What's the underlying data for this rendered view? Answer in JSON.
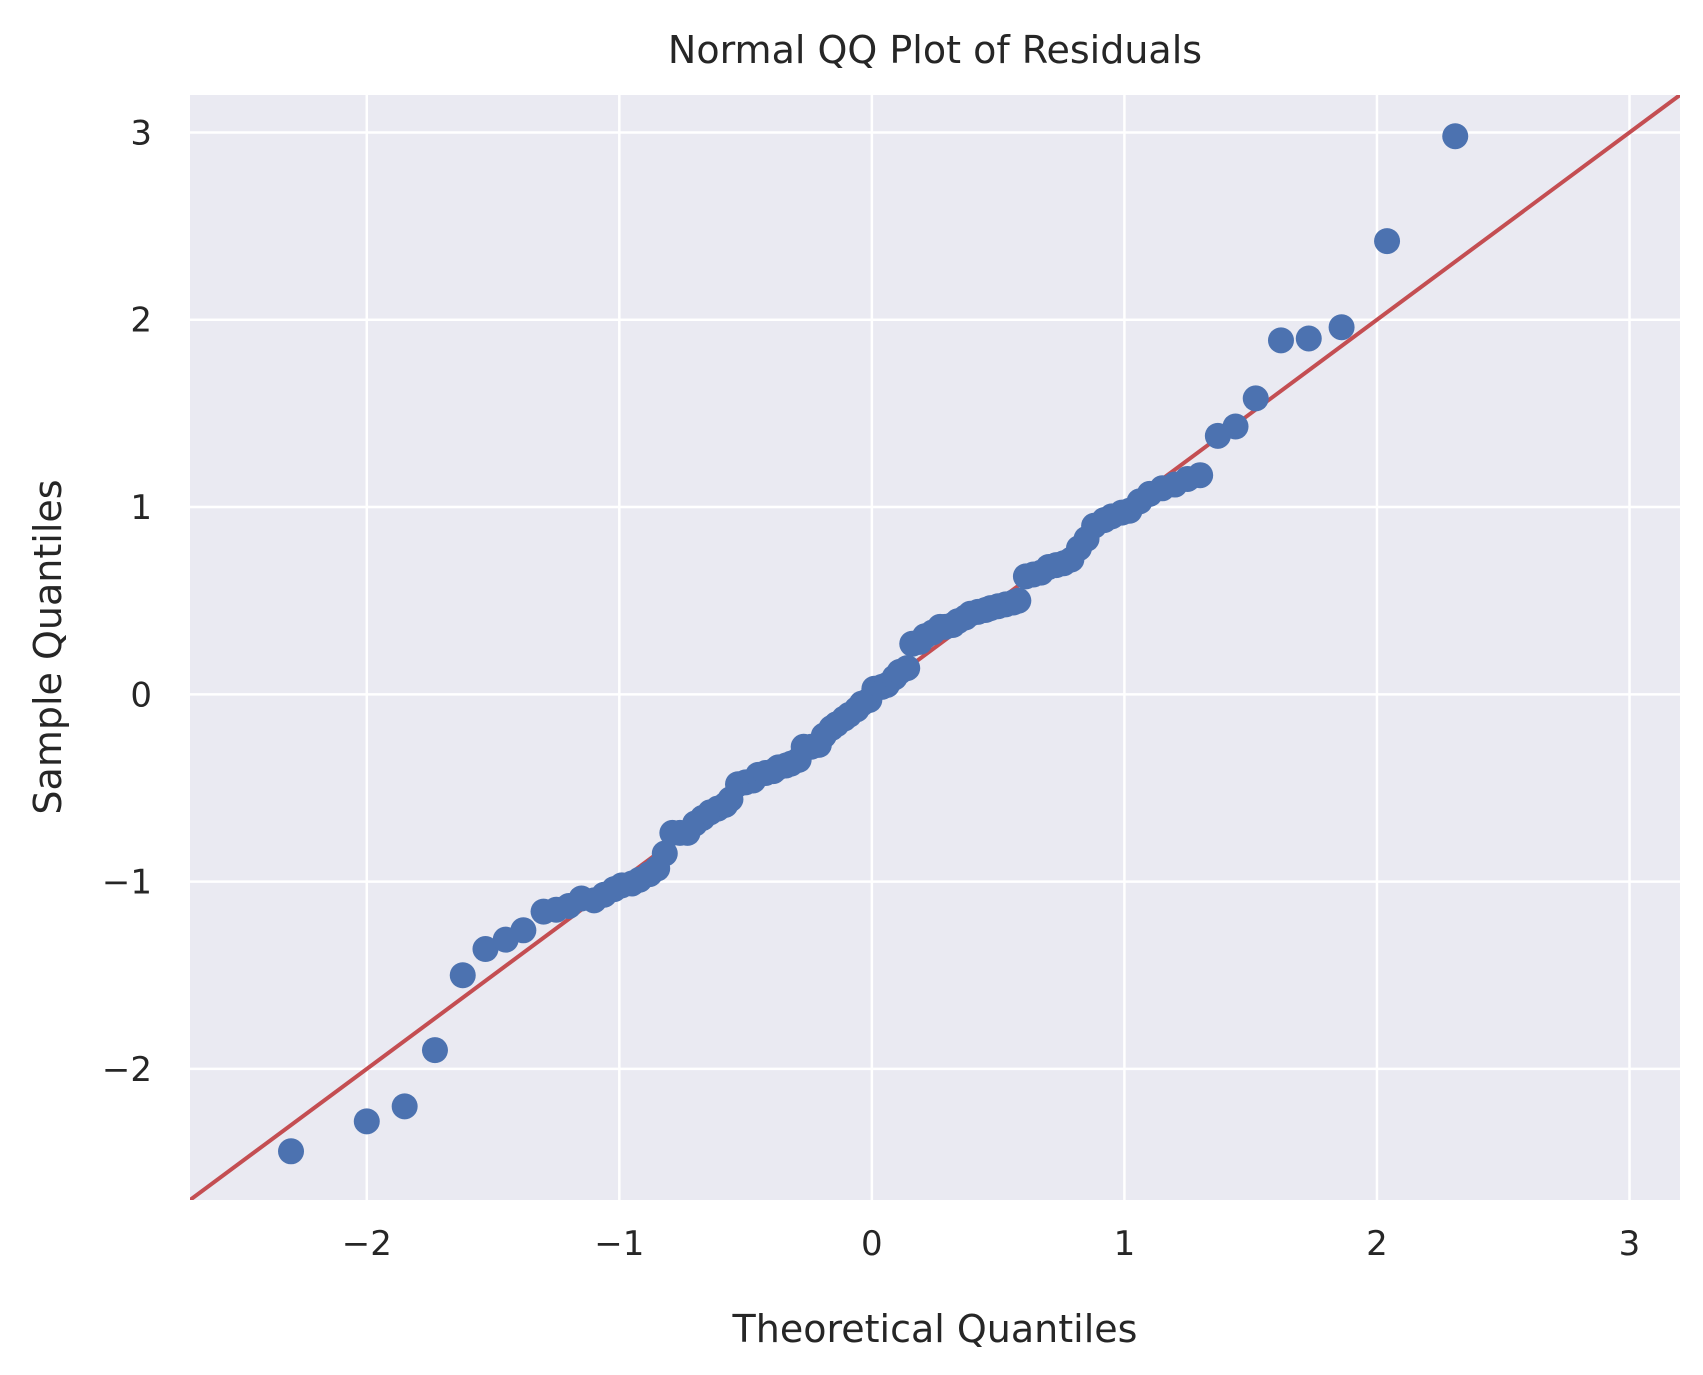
{
  "chart_data": {
    "type": "scatter",
    "title": "Normal QQ Plot of Residuals",
    "xlabel": "Theoretical Quantiles",
    "ylabel": "Sample Quantiles",
    "xlim": [
      -2.7,
      3.2
    ],
    "ylim": [
      -2.7,
      3.2
    ],
    "x_ticks": [
      -2,
      -1,
      0,
      1,
      2,
      3
    ],
    "y_ticks": [
      -2,
      -1,
      0,
      1,
      2,
      3
    ],
    "x_tick_labels": [
      "−2",
      "−1",
      "0",
      "1",
      "2",
      "3"
    ],
    "y_tick_labels": [
      "−2",
      "−1",
      "0",
      "1",
      "2",
      "3"
    ],
    "grid": true,
    "background_color": "#eaeaf2",
    "point_color": "#4c72b0",
    "line_color": "#c44e52",
    "reference_line": {
      "slope": 1,
      "intercept": 0
    },
    "series": [
      {
        "points": [
          [
            -2.3,
            -2.44
          ],
          [
            -2.0,
            -2.28
          ],
          [
            -1.85,
            -2.2
          ],
          [
            -1.73,
            -1.9
          ],
          [
            -1.62,
            -1.5
          ],
          [
            -1.53,
            -1.36
          ],
          [
            -1.45,
            -1.31
          ],
          [
            -1.38,
            -1.26
          ],
          [
            -1.3,
            -1.16
          ],
          [
            -1.25,
            -1.15
          ],
          [
            -1.2,
            -1.13
          ],
          [
            -1.15,
            -1.09
          ],
          [
            -1.1,
            -1.1
          ],
          [
            -1.06,
            -1.07
          ],
          [
            -1.02,
            -1.04
          ],
          [
            -0.99,
            -1.02
          ],
          [
            -0.95,
            -1.01
          ],
          [
            -0.92,
            -0.99
          ],
          [
            -0.88,
            -0.96
          ],
          [
            -0.85,
            -0.93
          ],
          [
            -0.82,
            -0.85
          ],
          [
            -0.79,
            -0.74
          ],
          [
            -0.76,
            -0.74
          ],
          [
            -0.73,
            -0.74
          ],
          [
            -0.7,
            -0.69
          ],
          [
            -0.67,
            -0.66
          ],
          [
            -0.64,
            -0.63
          ],
          [
            -0.61,
            -0.61
          ],
          [
            -0.58,
            -0.59
          ],
          [
            -0.56,
            -0.56
          ],
          [
            -0.53,
            -0.48
          ],
          [
            -0.5,
            -0.47
          ],
          [
            -0.47,
            -0.46
          ],
          [
            -0.45,
            -0.43
          ],
          [
            -0.42,
            -0.42
          ],
          [
            -0.39,
            -0.41
          ],
          [
            -0.37,
            -0.39
          ],
          [
            -0.34,
            -0.38
          ],
          [
            -0.32,
            -0.37
          ],
          [
            -0.29,
            -0.35
          ],
          [
            -0.27,
            -0.28
          ],
          [
            -0.24,
            -0.28
          ],
          [
            -0.21,
            -0.27
          ],
          [
            -0.19,
            -0.22
          ],
          [
            -0.16,
            -0.18
          ],
          [
            -0.14,
            -0.16
          ],
          [
            -0.11,
            -0.13
          ],
          [
            -0.09,
            -0.11
          ],
          [
            -0.06,
            -0.08
          ],
          [
            -0.04,
            -0.05
          ],
          [
            -0.01,
            -0.03
          ],
          [
            0.01,
            0.03
          ],
          [
            0.04,
            0.04
          ],
          [
            0.06,
            0.05
          ],
          [
            0.09,
            0.09
          ],
          [
            0.11,
            0.12
          ],
          [
            0.14,
            0.14
          ],
          [
            0.16,
            0.27
          ],
          [
            0.19,
            0.28
          ],
          [
            0.21,
            0.31
          ],
          [
            0.24,
            0.33
          ],
          [
            0.27,
            0.36
          ],
          [
            0.29,
            0.36
          ],
          [
            0.32,
            0.37
          ],
          [
            0.34,
            0.39
          ],
          [
            0.37,
            0.41
          ],
          [
            0.39,
            0.43
          ],
          [
            0.42,
            0.44
          ],
          [
            0.45,
            0.45
          ],
          [
            0.47,
            0.46
          ],
          [
            0.5,
            0.47
          ],
          [
            0.53,
            0.48
          ],
          [
            0.56,
            0.49
          ],
          [
            0.58,
            0.5
          ],
          [
            0.61,
            0.63
          ],
          [
            0.64,
            0.64
          ],
          [
            0.67,
            0.65
          ],
          [
            0.7,
            0.68
          ],
          [
            0.73,
            0.69
          ],
          [
            0.76,
            0.7
          ],
          [
            0.79,
            0.72
          ],
          [
            0.82,
            0.78
          ],
          [
            0.85,
            0.83
          ],
          [
            0.88,
            0.9
          ],
          [
            0.92,
            0.93
          ],
          [
            0.95,
            0.95
          ],
          [
            0.99,
            0.97
          ],
          [
            1.02,
            0.98
          ],
          [
            1.06,
            1.03
          ],
          [
            1.1,
            1.07
          ],
          [
            1.15,
            1.1
          ],
          [
            1.2,
            1.12
          ],
          [
            1.25,
            1.15
          ],
          [
            1.3,
            1.17
          ],
          [
            1.37,
            1.38
          ],
          [
            1.44,
            1.43
          ],
          [
            1.52,
            1.58
          ],
          [
            1.62,
            1.89
          ],
          [
            1.73,
            1.9
          ],
          [
            1.86,
            1.96
          ],
          [
            2.04,
            2.42
          ],
          [
            2.31,
            2.98
          ]
        ]
      }
    ]
  }
}
